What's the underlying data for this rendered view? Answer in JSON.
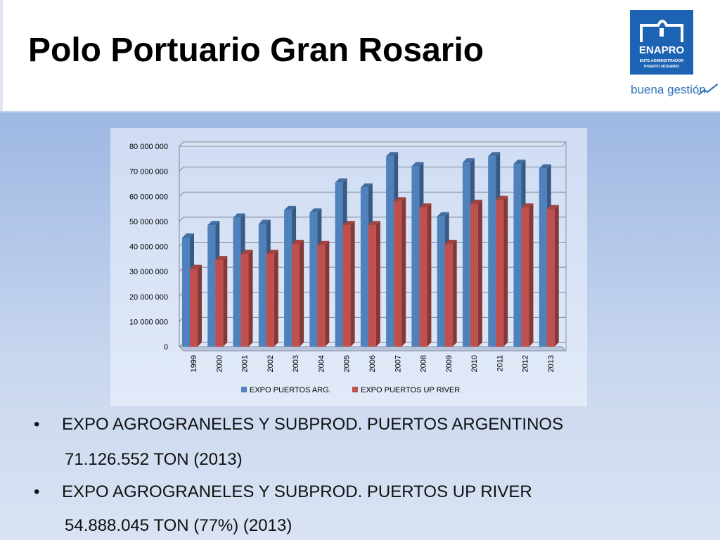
{
  "slide": {
    "title": "Polo Portuario Gran Rosario"
  },
  "logo": {
    "name": "ENAPRO",
    "line1": "ENTE ADMINISTRADOR",
    "line2": "PUERTO ROSARIO",
    "tagline": "buena gestión",
    "brand_color": "#1c63b3"
  },
  "bullets": [
    {
      "marker": "•",
      "text": "EXPO AGROGRANELES Y SUBPROD. PUERTOS ARGENTINOS",
      "detail": "71.126.552 TON (2013)"
    },
    {
      "marker": "•",
      "text": "EXPO AGROGRANELES Y SUBPROD. PUERTOS UP RIVER",
      "detail": "54.888.045 TON (77%) (2013)"
    }
  ],
  "chart_data": {
    "type": "bar",
    "style": "3d-clustered-column",
    "title": "",
    "xlabel": "",
    "ylabel": "",
    "categories": [
      "1999",
      "2000",
      "2001",
      "2002",
      "2003",
      "2004",
      "2005",
      "2006",
      "2007",
      "2008",
      "2009",
      "2010",
      "2011",
      "2012",
      "2013"
    ],
    "series": [
      {
        "name": "EXPO PUERTOS ARG.",
        "color": "#4f81bd",
        "values": [
          43500000,
          48500000,
          51500000,
          49000000,
          54500000,
          53500000,
          65500000,
          63500000,
          76000000,
          72000000,
          52000000,
          73500000,
          76000000,
          73000000,
          71126552
        ]
      },
      {
        "name": "EXPO PUERTOS UP RIVER",
        "color": "#c0504d",
        "values": [
          31000000,
          34500000,
          37000000,
          37000000,
          41000000,
          40500000,
          48500000,
          48500000,
          58000000,
          55500000,
          41000000,
          57000000,
          58500000,
          55500000,
          54888045
        ]
      }
    ],
    "ylim": [
      0,
      80000000
    ],
    "yticks": [
      0,
      10000000,
      20000000,
      30000000,
      40000000,
      50000000,
      60000000,
      70000000,
      80000000
    ],
    "ytick_labels": [
      "0",
      "10 000 000",
      "20 000 000",
      "30 000 000",
      "40 000 000",
      "50 000 000",
      "60 000 000",
      "70 000 000",
      "80 000 000"
    ],
    "grid": true,
    "legend_position": "bottom"
  }
}
